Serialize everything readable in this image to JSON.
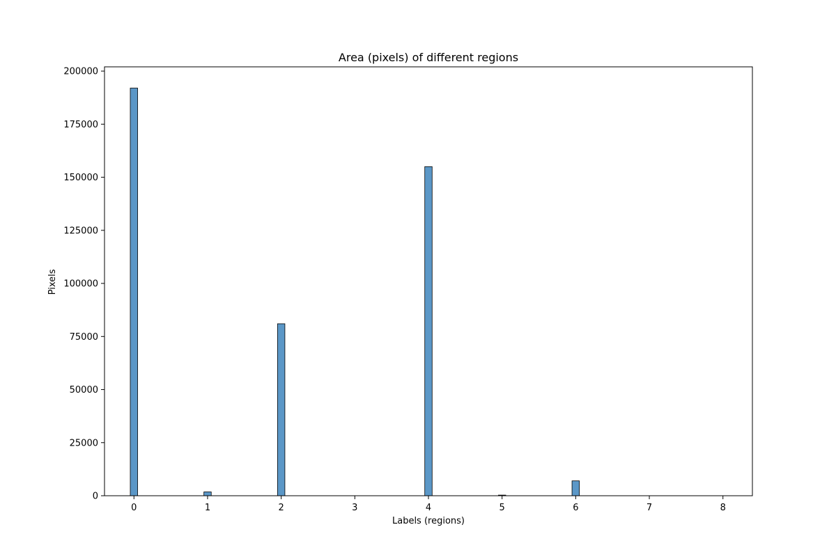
{
  "chart_data": {
    "type": "bar",
    "title": "Area (pixels) of different regions",
    "xlabel": "Labels (regions)",
    "ylabel": "Pixels",
    "xlim": [
      -0.4,
      8.4
    ],
    "ylim": [
      0,
      202000
    ],
    "x_ticks": [
      "0",
      "1",
      "2",
      "3",
      "4",
      "5",
      "6",
      "7",
      "8"
    ],
    "y_ticks": [
      "0",
      "25000",
      "50000",
      "75000",
      "100000",
      "125000",
      "150000",
      "175000",
      "200000"
    ],
    "bar_width": 0.1,
    "bars": [
      {
        "label": "0",
        "x": 0,
        "value": 192000
      },
      {
        "label": "1",
        "x": 1,
        "value": 1800
      },
      {
        "label": "2",
        "x": 2,
        "value": 81000
      },
      {
        "label": "3",
        "x": 3,
        "value": 0
      },
      {
        "label": "4",
        "x": 4,
        "value": 155000
      },
      {
        "label": "5",
        "x": 5,
        "value": 300
      },
      {
        "label": "6",
        "x": 6,
        "value": 7000
      },
      {
        "label": "7",
        "x": 7,
        "value": 0
      },
      {
        "label": "8",
        "x": 8,
        "value": 0
      }
    ],
    "grid": false,
    "bar_color": "#5b97c7",
    "edge_color": "#000000"
  }
}
